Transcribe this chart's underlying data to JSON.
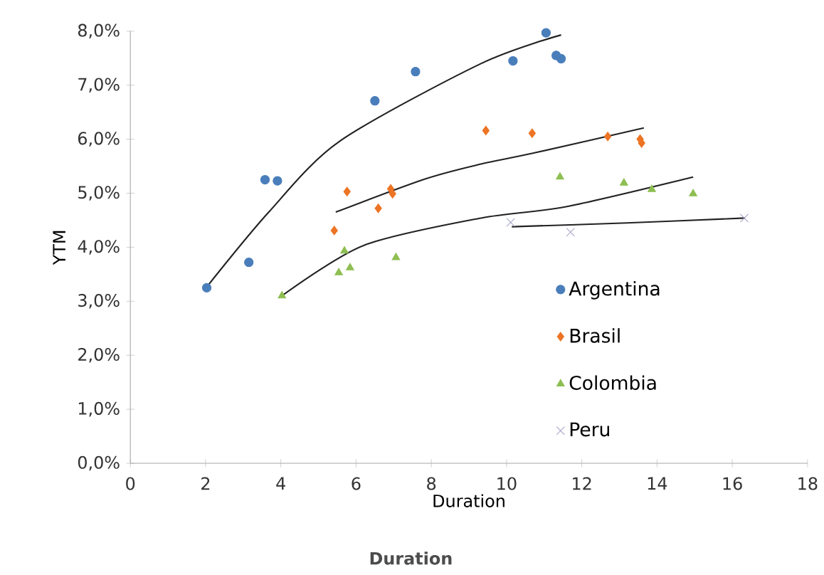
{
  "chart_data": {
    "type": "scatter",
    "xlabel": "Duration",
    "ylabel": "YTM",
    "annotations": [
      "Duration"
    ],
    "xlim": [
      0,
      18
    ],
    "xticks": [
      0,
      2,
      4,
      6,
      8,
      10,
      12,
      14,
      16,
      18
    ],
    "ylim": [
      0,
      8
    ],
    "yticks": [
      {
        "value": 0,
        "label": "0,0%"
      },
      {
        "value": 1,
        "label": "1,0%"
      },
      {
        "value": 2,
        "label": "2,0%"
      },
      {
        "value": 3,
        "label": "3,0%"
      },
      {
        "value": 4,
        "label": "4,0%"
      },
      {
        "value": 5,
        "label": "5,0%"
      },
      {
        "value": 6,
        "label": "6,0%"
      },
      {
        "value": 7,
        "label": "7,0%"
      },
      {
        "value": 8,
        "label": "8,0%"
      }
    ],
    "grid": false,
    "legend": "right",
    "series": [
      {
        "name": "Argentina",
        "color": "#4a7ebb",
        "marker": "circle",
        "x": [
          2.03,
          3.15,
          3.58,
          3.91,
          6.5,
          7.58,
          10.17,
          11.05,
          11.32,
          11.45
        ],
        "values": [
          3.25,
          3.72,
          5.25,
          5.23,
          6.71,
          7.25,
          7.45,
          7.97,
          7.55,
          7.49
        ]
      },
      {
        "name": "Brasil",
        "color": "#ec7424",
        "marker": "diamond",
        "x": [
          5.42,
          5.76,
          6.59,
          6.92,
          6.97,
          9.45,
          10.68,
          12.69,
          13.55,
          13.59
        ],
        "values": [
          4.31,
          5.03,
          4.72,
          5.08,
          4.99,
          6.16,
          6.11,
          6.05,
          6.0,
          5.93
        ]
      },
      {
        "name": "Colombia",
        "color": "#8ebe52",
        "marker": "triangle",
        "x": [
          4.03,
          5.54,
          5.84,
          5.69,
          7.06,
          11.42,
          13.12,
          13.86,
          14.96
        ],
        "values": [
          3.1,
          3.53,
          3.62,
          3.93,
          3.81,
          5.3,
          5.19,
          5.07,
          4.99
        ]
      },
      {
        "name": "Peru",
        "color": "#a5a5c8",
        "marker": "cross",
        "x": [
          10.11,
          11.7,
          16.32
        ],
        "values": [
          4.46,
          4.28,
          4.54
        ]
      },
      {
        "type": "line",
        "color": "#222222",
        "marker": "none",
        "x": [
          2.06,
          3.68,
          5.56,
          9.32,
          11.45
        ],
        "values": [
          3.29,
          4.65,
          5.96,
          7.4,
          7.93
        ]
      },
      {
        "type": "line",
        "color": "#222222",
        "marker": "none",
        "x": [
          5.46,
          7.82,
          9.32,
          10.7,
          13.65
        ],
        "values": [
          4.65,
          5.26,
          5.54,
          5.74,
          6.21
        ]
      },
      {
        "type": "line",
        "color": "#222222",
        "marker": "none",
        "x": [
          4.03,
          6.19,
          9.32,
          11.58,
          14.96
        ],
        "values": [
          3.1,
          4.03,
          4.54,
          4.75,
          5.3
        ]
      },
      {
        "type": "line",
        "color": "#222222",
        "marker": "none",
        "x": [
          10.14,
          13.2,
          16.34
        ],
        "values": [
          4.38,
          4.45,
          4.54
        ]
      }
    ]
  }
}
